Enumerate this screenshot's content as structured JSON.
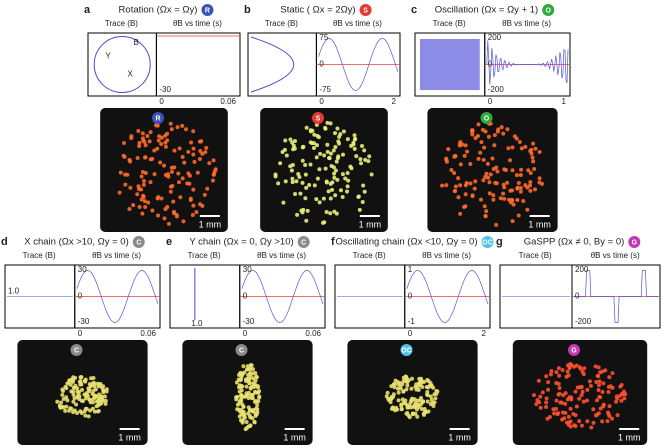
{
  "panels": [
    {
      "letter": "a",
      "title": "Rotation (Ωx = Ωy)",
      "badge": "R",
      "badge_color": "#3f51b5",
      "trace_label": "Trace (B)",
      "plot_label": "θ̇B vs time (s)",
      "trace_ticks": [
        "B",
        "Y",
        "X"
      ],
      "y_ticks": [
        "-30"
      ],
      "x_ticks": [
        "0",
        "0.06"
      ],
      "scale": "1 mm"
    },
    {
      "letter": "b",
      "title": "Static ( Ωx = 2Ωy)",
      "badge": "S",
      "badge_color": "#e53935",
      "trace_label": "Trace (B)",
      "plot_label": "θ̇B vs time (s)",
      "trace_ticks": [],
      "y_ticks": [
        "75",
        "0",
        "-75"
      ],
      "x_ticks": [
        "0",
        "2"
      ],
      "scale": "1 mm"
    },
    {
      "letter": "c",
      "title": "Oscillation (Ωx = Ωy + 1)",
      "badge": "O",
      "badge_color": "#2eaa3a",
      "trace_label": "Trace (B)",
      "plot_label": "θ̇B vs time (s)",
      "trace_ticks": [],
      "y_ticks": [
        "200",
        "0",
        "-200"
      ],
      "x_ticks": [
        "0",
        "1"
      ],
      "scale": "1 mm"
    },
    {
      "letter": "d",
      "title": "X chain (Ωx >10, Ωy = 0)",
      "badge": "C",
      "badge_color": "#8a8a8a",
      "trace_label": "Trace (B)",
      "plot_label": "θ̇B vs time (s)",
      "trace_ticks": [
        "1.0"
      ],
      "y_ticks": [
        "30",
        "0",
        "-30"
      ],
      "x_ticks": [
        "0",
        "0.06"
      ],
      "scale": "1 mm"
    },
    {
      "letter": "e",
      "title": "Y chain (Ωx = 0, Ωy >10)",
      "badge": "C",
      "badge_color": "#8a8a8a",
      "trace_label": "Trace (B)",
      "plot_label": "θ̇B vs time (s)",
      "trace_ticks": [
        "1.0"
      ],
      "y_ticks": [
        "30",
        "0",
        "-30"
      ],
      "x_ticks": [
        "0",
        "0.06"
      ],
      "scale": "1 mm"
    },
    {
      "letter": "f",
      "title": "Oscillating chain (Ωx <10, Ωy = 0)",
      "badge": "OC",
      "badge_color": "#4fc3e8",
      "trace_label": "Trace (B)",
      "plot_label": "θ̇B vs time (s)",
      "trace_ticks": [],
      "y_ticks": [
        "1",
        "0",
        "-1"
      ],
      "x_ticks": [
        "0",
        "2"
      ],
      "scale": "1 mm"
    },
    {
      "letter": "g",
      "title": "GaSPP (Ωx ≠ 0, By = 0)",
      "badge": "G",
      "badge_color": "#c239b3",
      "trace_label": "Trace (B)",
      "plot_label": "θ̇B vs time (s)",
      "trace_ticks": [],
      "y_ticks": [
        "200",
        "0",
        "-200"
      ],
      "x_ticks": [],
      "scale": "1 mm"
    }
  ]
}
